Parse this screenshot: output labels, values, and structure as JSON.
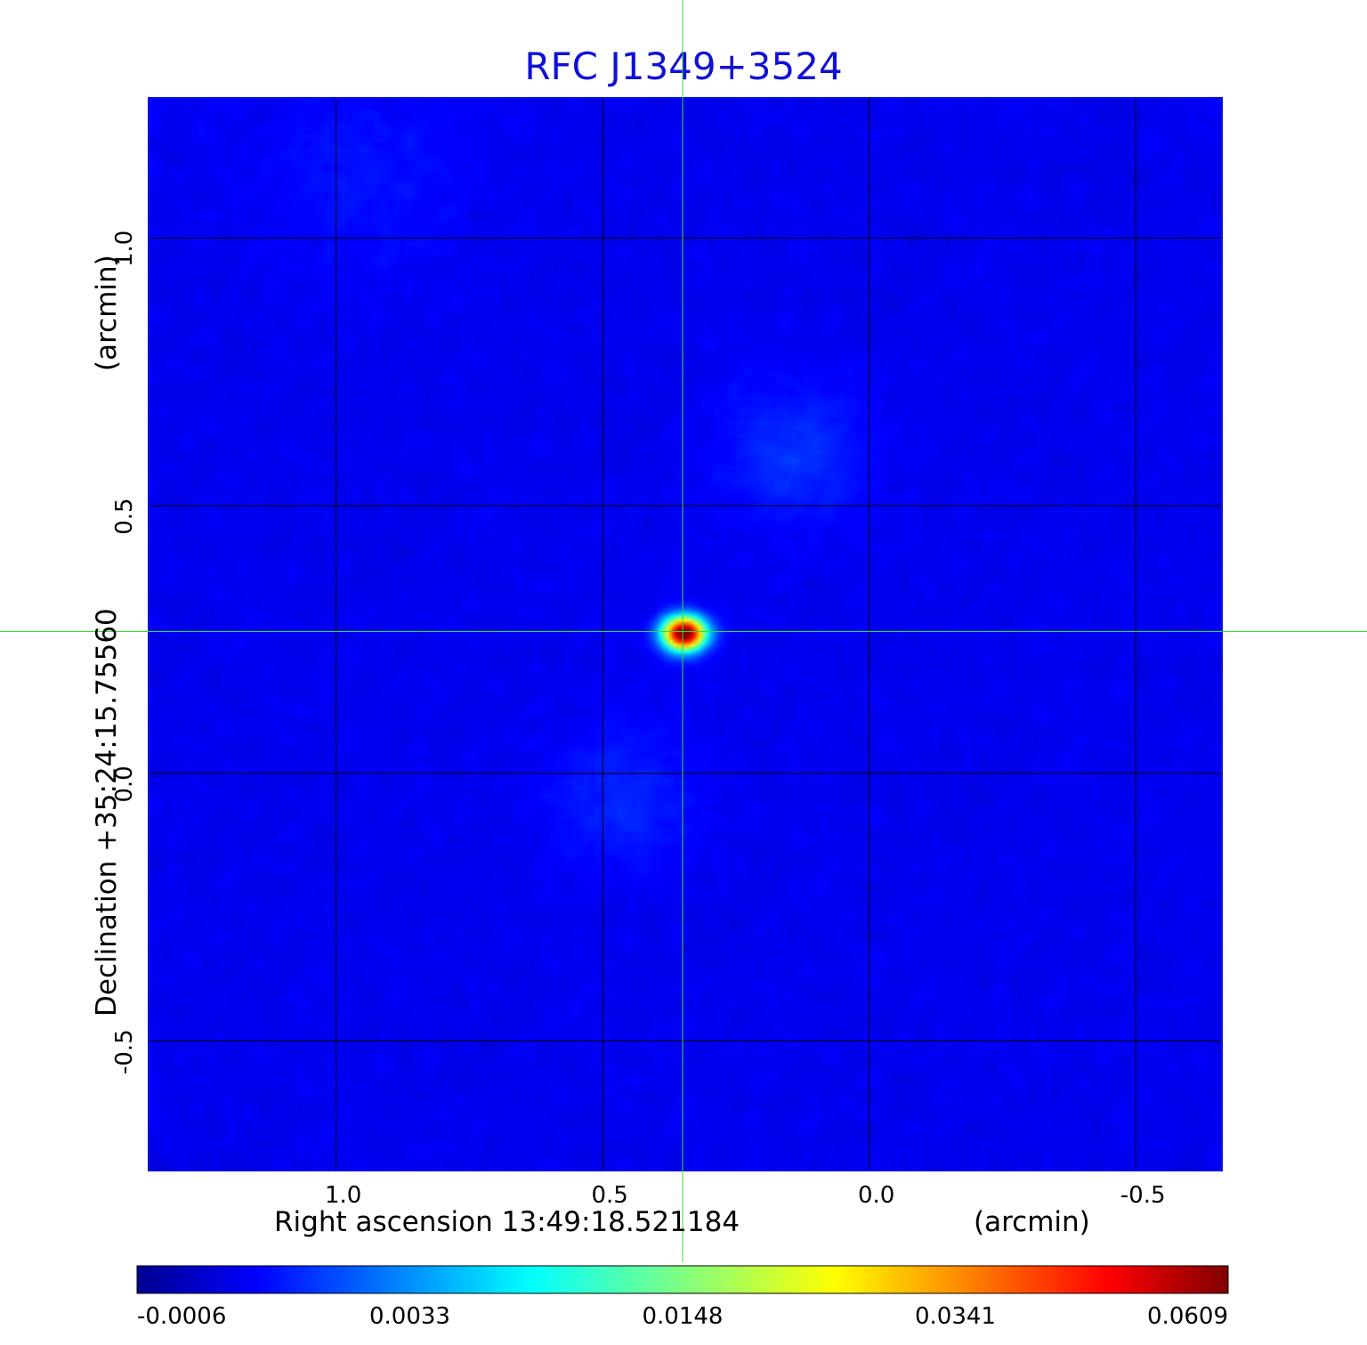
{
  "chart_data": {
    "type": "heatmap",
    "title": "RFC J1349+3524",
    "xlabel": "Right ascension  13:49:18.521184",
    "xlabel_unit": "(arcmin)",
    "ylabel": "Declination  +35:24:15.75560",
    "ylabel_unit": "(arcmin)",
    "x_range": [
      1.35,
      -0.66
    ],
    "y_range": [
      -0.74,
      1.26
    ],
    "x_ticks": [
      1.0,
      0.5,
      0.0,
      -0.5
    ],
    "x_tick_labels": [
      "1.0",
      "0.5",
      "0.0",
      "-0.5"
    ],
    "y_ticks": [
      -0.5,
      0.0,
      0.5,
      1.0
    ],
    "y_tick_labels": [
      "-0.5",
      "0.0",
      "0.5",
      "1.0"
    ],
    "grid": true,
    "crosshair": {
      "x": 0.35,
      "y": 0.265,
      "color": "#33dd33"
    },
    "peak": {
      "x": 0.35,
      "y": 0.265,
      "value": 0.0609
    },
    "colormap": "jet",
    "colorbar": {
      "tick_labels": [
        "-0.0006",
        "0.0033",
        "0.0148",
        "0.0341",
        "0.0609"
      ],
      "ticks": [
        -0.0006,
        0.0033,
        0.0148,
        0.0341,
        0.0609
      ]
    }
  }
}
